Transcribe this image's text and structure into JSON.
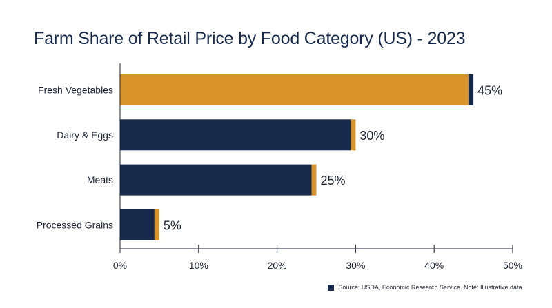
{
  "chart_data": {
    "type": "bar",
    "orientation": "horizontal",
    "title": "Farm Share of Retail Price by Food Category (US) - 2023",
    "categories": [
      "Fresh Vegetables",
      "Dairy & Eggs",
      "Meats",
      "Processed Grains"
    ],
    "values": [
      45,
      30,
      25,
      5
    ],
    "value_labels": [
      "45%",
      "30%",
      "25%",
      "5%"
    ],
    "highlight_category": "Fresh Vegetables",
    "xlim": [
      0,
      50
    ],
    "xticks": [
      0,
      10,
      20,
      30,
      40,
      50
    ],
    "xtick_labels": [
      "0%",
      "10%",
      "20%",
      "30%",
      "40%",
      "50%"
    ],
    "xlabel": "",
    "ylabel": "",
    "grid": false,
    "colors": {
      "primary": "#172a4c",
      "highlight": "#d8922a",
      "text": "#1d2233"
    }
  },
  "footer": {
    "source_text": "Source: USDA, Economic Research Service. Note: Illustrative data.",
    "swatch_color": "#172a4c"
  }
}
